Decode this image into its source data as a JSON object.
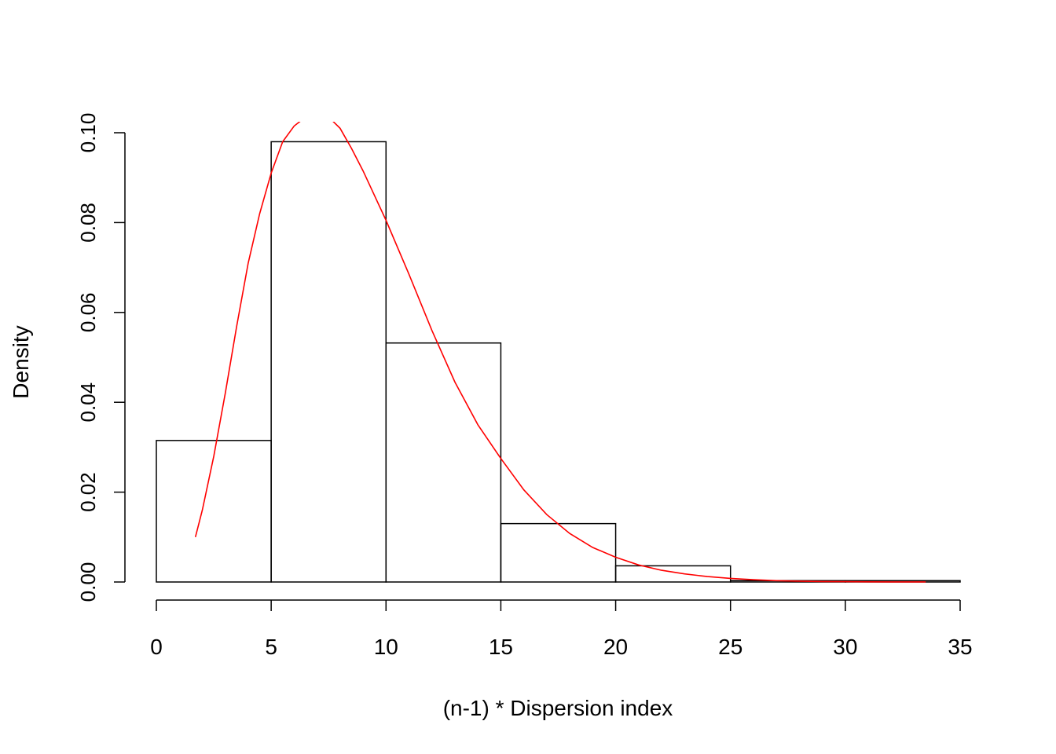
{
  "chart_data": {
    "type": "bar",
    "title": "",
    "xlabel": "(n-1) * Dispersion index",
    "ylabel": "Density",
    "xlim": [
      0,
      35
    ],
    "ylim": [
      0,
      0.1
    ],
    "x_ticks": [
      0,
      5,
      10,
      15,
      20,
      25,
      30,
      35
    ],
    "x_tick_labels": [
      "0",
      "5",
      "10",
      "15",
      "20",
      "25",
      "30",
      "35"
    ],
    "y_ticks": [
      0,
      0.02,
      0.04,
      0.06,
      0.08,
      0.1
    ],
    "y_tick_labels": [
      "0.00",
      "0.02",
      "0.04",
      "0.06",
      "0.08",
      "0.10"
    ],
    "grid": false,
    "bins": [
      {
        "start": 0,
        "end": 5,
        "density": 0.0315
      },
      {
        "start": 5,
        "end": 10,
        "density": 0.098
      },
      {
        "start": 10,
        "end": 15,
        "density": 0.0532
      },
      {
        "start": 15,
        "end": 20,
        "density": 0.013
      },
      {
        "start": 20,
        "end": 25,
        "density": 0.0036
      },
      {
        "start": 25,
        "end": 30,
        "density": 0.0003
      },
      {
        "start": 30,
        "end": 35,
        "density": 0.0003
      }
    ],
    "curve": {
      "color": "#ff0000",
      "x": [
        1.7,
        2.0,
        2.5,
        3.0,
        3.5,
        4.0,
        4.5,
        5.0,
        5.5,
        6.0,
        6.5,
        7.0,
        7.5,
        8.0,
        8.5,
        9.0,
        9.5,
        10.0,
        11.0,
        12.0,
        13.0,
        14.0,
        15.0,
        16.0,
        17.0,
        18.0,
        19.0,
        20.0,
        21.0,
        22.0,
        23.0,
        24.0,
        25.0,
        26.0,
        27.0,
        28.0,
        29.0,
        30.0,
        31.0,
        32.0,
        33.5
      ],
      "y": [
        0.01,
        0.016,
        0.028,
        0.042,
        0.057,
        0.071,
        0.082,
        0.091,
        0.098,
        0.1015,
        0.1035,
        0.104,
        0.1035,
        0.101,
        0.0965,
        0.0915,
        0.086,
        0.0805,
        0.0685,
        0.056,
        0.0445,
        0.035,
        0.0275,
        0.0205,
        0.015,
        0.0108,
        0.0077,
        0.0055,
        0.0038,
        0.0026,
        0.0018,
        0.0012,
        0.0008,
        0.0005,
        0.0003,
        0.0002,
        0.0001,
        7e-05,
        4e-05,
        2e-05,
        1e-05
      ]
    }
  }
}
